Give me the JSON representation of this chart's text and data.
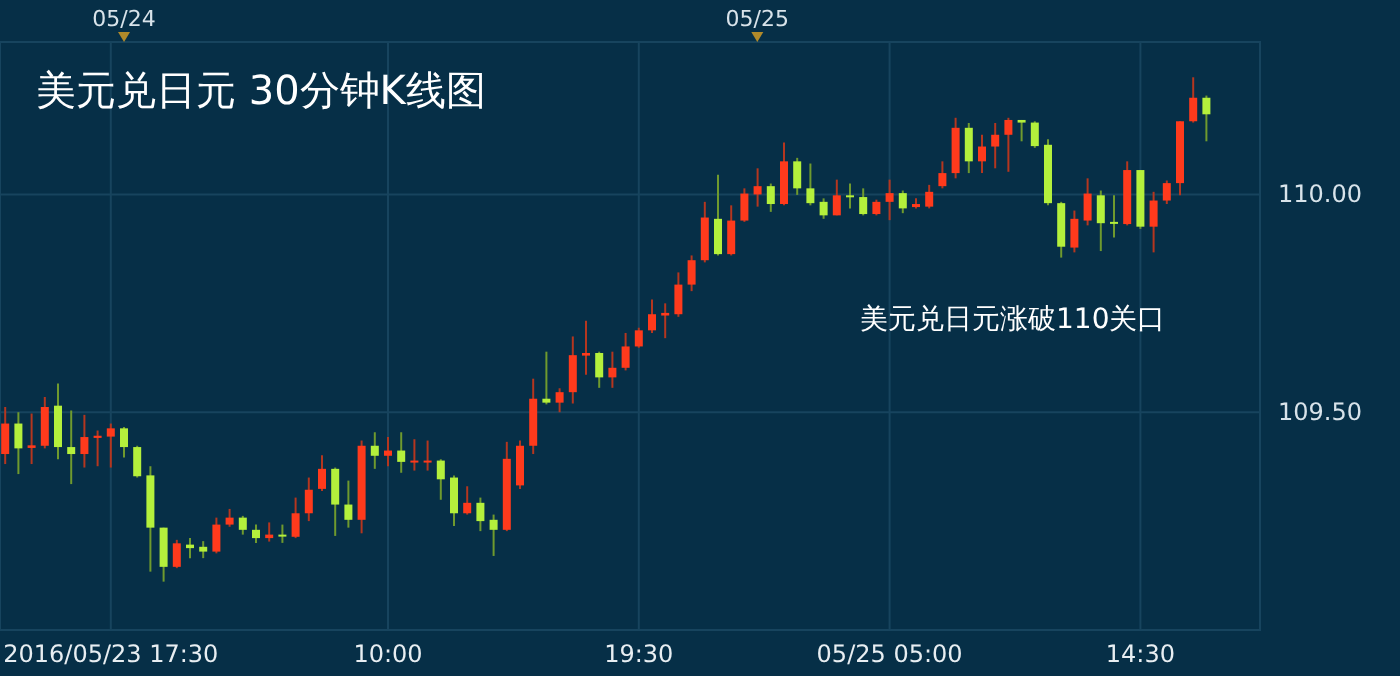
{
  "chart_data": {
    "type": "candlestick",
    "title": "美元兑日元 30分钟K线图",
    "annotations": [
      "美元兑日元涨破110关口"
    ],
    "categories": [
      null,
      null,
      null,
      null,
      null,
      null,
      null,
      null,
      "2016/05/23 17:30",
      null,
      null,
      null,
      null,
      null,
      null,
      null,
      null,
      null,
      null,
      null,
      null,
      null,
      null,
      null,
      null,
      null,
      null,
      null,
      null,
      "10:00",
      null,
      null,
      null,
      null,
      null,
      null,
      null,
      null,
      null,
      null,
      null,
      null,
      null,
      null,
      null,
      null,
      null,
      null,
      "19:30",
      null,
      null,
      null,
      null,
      null,
      null,
      null,
      null,
      null,
      null,
      null,
      null,
      null,
      null,
      null,
      null,
      null,
      null,
      "05/25 05:00",
      null,
      null,
      null,
      null,
      null,
      null,
      null,
      null,
      null,
      null,
      null,
      null,
      null,
      null,
      null,
      null,
      null,
      null,
      "14:30",
      null,
      null,
      null,
      null,
      null
    ],
    "ohlc": [
      [
        109.404,
        109.512,
        109.381,
        109.474
      ],
      [
        109.474,
        109.5,
        109.358,
        109.417
      ],
      [
        109.418,
        109.497,
        109.381,
        109.424
      ],
      [
        109.423,
        109.535,
        109.417,
        109.512
      ],
      [
        109.515,
        109.566,
        109.392,
        109.42
      ],
      [
        109.42,
        109.504,
        109.335,
        109.404
      ],
      [
        109.404,
        109.494,
        109.373,
        109.443
      ],
      [
        109.441,
        109.458,
        109.376,
        109.446
      ],
      [
        109.444,
        109.474,
        109.373,
        109.463
      ],
      [
        109.463,
        109.466,
        109.396,
        109.42
      ],
      [
        109.42,
        109.423,
        109.35,
        109.353
      ],
      [
        109.355,
        109.376,
        109.134,
        109.235
      ],
      [
        109.235,
        109.235,
        109.111,
        109.145
      ],
      [
        109.145,
        109.207,
        109.142,
        109.199
      ],
      [
        109.196,
        109.211,
        109.165,
        109.188
      ],
      [
        109.191,
        109.204,
        109.165,
        109.18
      ],
      [
        109.18,
        109.258,
        109.176,
        109.242
      ],
      [
        109.242,
        109.278,
        109.237,
        109.258
      ],
      [
        109.258,
        109.262,
        109.219,
        109.23
      ],
      [
        109.23,
        109.242,
        109.2,
        109.211
      ],
      [
        109.211,
        109.247,
        109.203,
        109.219
      ],
      [
        109.219,
        109.242,
        109.2,
        109.216
      ],
      [
        109.214,
        109.304,
        109.211,
        109.268
      ],
      [
        109.268,
        109.35,
        109.25,
        109.322
      ],
      [
        109.324,
        109.401,
        109.319,
        109.37
      ],
      [
        109.37,
        109.373,
        109.216,
        109.288
      ],
      [
        109.288,
        109.343,
        109.235,
        109.253
      ],
      [
        109.253,
        109.435,
        109.222,
        109.423
      ],
      [
        109.423,
        109.454,
        109.37,
        109.4
      ],
      [
        109.4,
        109.443,
        109.376,
        109.412
      ],
      [
        109.412,
        109.454,
        109.361,
        109.386
      ],
      [
        109.386,
        109.438,
        109.366,
        109.389
      ],
      [
        109.386,
        109.435,
        109.366,
        109.389
      ],
      [
        109.389,
        109.392,
        109.299,
        109.346
      ],
      [
        109.35,
        109.355,
        109.239,
        109.268
      ],
      [
        109.268,
        109.33,
        109.265,
        109.292
      ],
      [
        109.292,
        109.304,
        109.227,
        109.25
      ],
      [
        109.253,
        109.265,
        109.17,
        109.23
      ],
      [
        109.23,
        109.432,
        109.227,
        109.393
      ],
      [
        109.332,
        109.435,
        109.324,
        109.423
      ],
      [
        109.423,
        109.577,
        109.404,
        109.531
      ],
      [
        109.531,
        109.639,
        109.518,
        109.522
      ],
      [
        109.522,
        109.555,
        109.5,
        109.546
      ],
      [
        109.546,
        109.674,
        109.52,
        109.631
      ],
      [
        109.63,
        109.71,
        109.586,
        109.636
      ],
      [
        109.636,
        109.639,
        109.556,
        109.58
      ],
      [
        109.58,
        109.639,
        109.556,
        109.602
      ],
      [
        109.602,
        109.682,
        109.596,
        109.651
      ],
      [
        109.651,
        109.694,
        109.648,
        109.688
      ],
      [
        109.688,
        109.759,
        109.682,
        109.725
      ],
      [
        109.722,
        109.75,
        109.67,
        109.728
      ],
      [
        109.725,
        109.821,
        109.719,
        109.793
      ],
      [
        109.793,
        109.86,
        109.778,
        109.849
      ],
      [
        109.849,
        109.983,
        109.844,
        109.947
      ],
      [
        109.944,
        110.045,
        109.86,
        109.863
      ],
      [
        109.863,
        109.975,
        109.86,
        109.94
      ],
      [
        109.94,
        110.014,
        109.937,
        110.002
      ],
      [
        110.0,
        110.06,
        109.972,
        110.019
      ],
      [
        110.019,
        110.025,
        109.96,
        109.978
      ],
      [
        109.978,
        110.119,
        109.975,
        110.076
      ],
      [
        110.076,
        110.084,
        109.999,
        110.014
      ],
      [
        110.014,
        110.071,
        109.975,
        109.98
      ],
      [
        109.983,
        109.991,
        109.944,
        109.952
      ],
      [
        109.952,
        110.034,
        109.952,
        109.998
      ],
      [
        109.998,
        110.025,
        109.968,
        109.994
      ],
      [
        109.994,
        110.014,
        109.952,
        109.955
      ],
      [
        109.955,
        109.988,
        109.952,
        109.983
      ],
      [
        109.983,
        110.034,
        109.941,
        110.003
      ],
      [
        110.003,
        110.009,
        109.957,
        109.968
      ],
      [
        109.971,
        109.991,
        109.968,
        109.978
      ],
      [
        109.972,
        110.022,
        109.968,
        110.006
      ],
      [
        110.019,
        110.076,
        110.014,
        110.049
      ],
      [
        110.049,
        110.176,
        110.037,
        110.153
      ],
      [
        110.153,
        110.164,
        110.049,
        110.076
      ],
      [
        110.076,
        110.137,
        110.049,
        110.11
      ],
      [
        110.11,
        110.164,
        110.06,
        110.137
      ],
      [
        110.137,
        110.176,
        110.052,
        110.171
      ],
      [
        110.171,
        110.171,
        110.122,
        110.165
      ],
      [
        110.165,
        110.168,
        110.107,
        110.111
      ],
      [
        110.114,
        110.127,
        109.975,
        109.98
      ],
      [
        109.98,
        109.983,
        109.855,
        109.88
      ],
      [
        109.878,
        109.963,
        109.867,
        109.944
      ],
      [
        109.94,
        110.037,
        109.929,
        110.002
      ],
      [
        109.998,
        110.009,
        109.87,
        109.934
      ],
      [
        109.937,
        109.998,
        109.901,
        109.934
      ],
      [
        109.932,
        110.076,
        109.929,
        110.056
      ],
      [
        110.056,
        110.056,
        109.921,
        109.926
      ],
      [
        109.926,
        110.006,
        109.867,
        109.986
      ],
      [
        109.986,
        110.032,
        109.978,
        110.026
      ],
      [
        110.026,
        110.168,
        109.998,
        110.168
      ],
      [
        110.168,
        110.269,
        110.165,
        110.222
      ],
      [
        110.222,
        110.227,
        110.122,
        110.184
      ]
    ],
    "ylim": [
      109.0,
      110.35
    ],
    "yticks": [
      {
        "value": 110,
        "label": "110.00"
      },
      {
        "value": 109.5,
        "label": "109.50"
      }
    ],
    "x2lim": [
      "2016-05-23T19:18",
      "2016-05-25T19:03"
    ],
    "x2ticks": [
      {
        "value": "2016-05-24",
        "label": "05/24"
      },
      {
        "value": "2016-05-25",
        "label": "05/25"
      }
    ],
    "grid": true
  }
}
